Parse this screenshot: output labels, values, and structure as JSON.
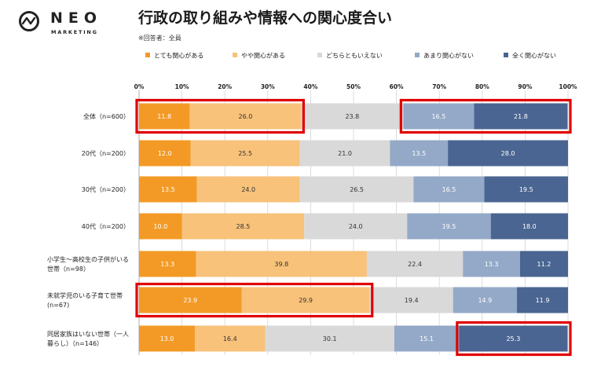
{
  "logo": {
    "name": "NEO",
    "sub": "MARKETING"
  },
  "title": "行政の取り組みや情報への関心度合い",
  "note": "※回答者：全員",
  "colors": {
    "very": "#f39a26",
    "somewhat": "#f8c27a",
    "neither": "#d9d9d9",
    "not_much": "#93a9c7",
    "not_at_all": "#4a6591",
    "highlight": "#e00000"
  },
  "chart_data": {
    "type": "bar",
    "orientation": "horizontal-stacked-100",
    "xlim": [
      0,
      100
    ],
    "x_ticks": [
      "0%",
      "10%",
      "20%",
      "30%",
      "40%",
      "50%",
      "60%",
      "70%",
      "80%",
      "90%",
      "100%"
    ],
    "grid": true,
    "legend_position": "top",
    "categories": [
      [
        "全体（n=600）"
      ],
      [
        "20代（n=200）"
      ],
      [
        "30代（n=200）"
      ],
      [
        "40代（n=200）"
      ],
      [
        "小学生～高校生の子供がいる",
        "世帯（n=98）"
      ],
      [
        "未就学児のいる子育て世帯",
        "(n=67)"
      ],
      [
        "同居家族はいない世帯（一人",
        "暮らし）（n=146）"
      ]
    ],
    "series": [
      {
        "name": "とても関心がある",
        "color": "#f39a26",
        "text_color": "#ffffff",
        "values": [
          11.8,
          12.0,
          13.5,
          10.0,
          13.3,
          23.9,
          13.0
        ]
      },
      {
        "name": "やや関心がある",
        "color": "#f8c27a",
        "text_color": "#333333",
        "values": [
          26.0,
          25.5,
          24.0,
          28.5,
          39.8,
          29.9,
          16.4
        ]
      },
      {
        "name": "どちらともいえない",
        "color": "#d9d9d9",
        "text_color": "#333333",
        "values": [
          23.8,
          21.0,
          26.5,
          24.0,
          22.4,
          19.4,
          30.1
        ]
      },
      {
        "name": "あまり関心がない",
        "color": "#93a9c7",
        "text_color": "#ffffff",
        "values": [
          16.5,
          13.5,
          16.5,
          19.5,
          13.3,
          14.9,
          15.1
        ]
      },
      {
        "name": "全く関心がない",
        "color": "#4a6591",
        "text_color": "#ffffff",
        "values": [
          21.8,
          28.0,
          19.5,
          18.0,
          11.2,
          11.9,
          25.3
        ]
      }
    ],
    "highlights": [
      {
        "row": 0,
        "from": 0,
        "to": 37.8
      },
      {
        "row": 0,
        "to": 100,
        "from": 61.6
      },
      {
        "row": 5,
        "from": 0,
        "to": 53.8
      },
      {
        "row": 6,
        "from": 74.7,
        "to": 100
      }
    ]
  }
}
